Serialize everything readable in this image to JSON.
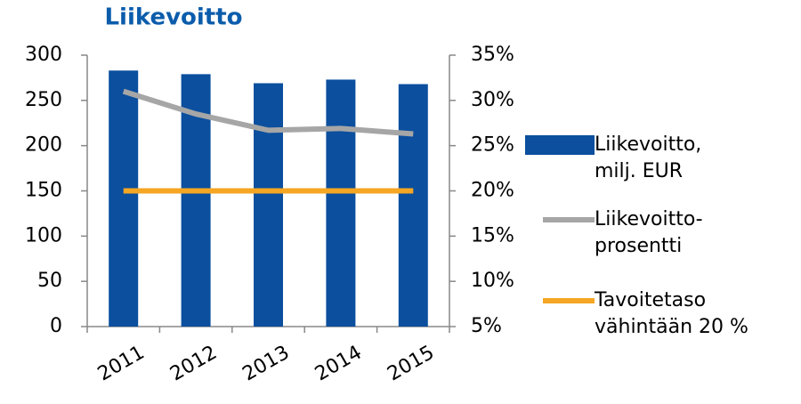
{
  "chart_data": {
    "type": "bar_line",
    "title": "Liikevoitto",
    "categories": [
      "2011",
      "2012",
      "2013",
      "2014",
      "2015"
    ],
    "series": [
      {
        "name": "Liikevoitto, milj. EUR",
        "type": "bar",
        "axis": "y",
        "color": "#0b4f9e",
        "values": [
          283,
          279,
          269,
          273,
          268
        ]
      },
      {
        "name": "Liikevoitto-prosentti",
        "type": "line",
        "axis": "y2",
        "color": "#a6a6a6",
        "values": [
          31.0,
          28.5,
          26.7,
          26.9,
          26.3
        ]
      },
      {
        "name": "Tavoitetaso vähintään 20 %",
        "type": "line",
        "axis": "y2",
        "color": "#f5a623",
        "values": [
          20,
          20,
          20,
          20,
          20
        ]
      }
    ],
    "ylim": [
      0,
      300
    ],
    "yticks": [
      0,
      50,
      100,
      150,
      200,
      250,
      300
    ],
    "y2lim": [
      5,
      35
    ],
    "y2ticks": [
      {
        "value": 5,
        "label": "5%"
      },
      {
        "value": 10,
        "label": "10%"
      },
      {
        "value": 15,
        "label": "15%"
      },
      {
        "value": 20,
        "label": "20%"
      },
      {
        "value": 25,
        "label": "25%"
      },
      {
        "value": 30,
        "label": "30%"
      },
      {
        "value": 35,
        "label": "35%"
      }
    ],
    "grid": false,
    "legend": "right"
  }
}
